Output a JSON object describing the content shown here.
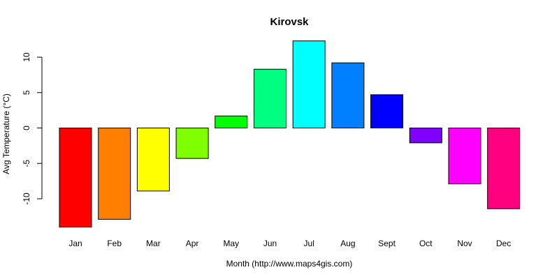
{
  "chart_data": {
    "type": "bar",
    "title": "Kirovsk",
    "xlabel": "Month (http://www.maps4gis.com)",
    "ylabel": "Avg Temperature (°C)",
    "categories": [
      "Jan",
      "Feb",
      "Mar",
      "Apr",
      "May",
      "Jun",
      "Jul",
      "Aug",
      "Sept",
      "Oct",
      "Nov",
      "Dec"
    ],
    "values": [
      -14.0,
      -12.9,
      -8.9,
      -4.3,
      1.7,
      8.3,
      12.3,
      9.2,
      4.7,
      -2.1,
      -7.9,
      -11.4
    ],
    "colors": [
      "#FF0000",
      "#FF8000",
      "#FFFF00",
      "#80FF00",
      "#00FF00",
      "#00FF80",
      "#00FFFF",
      "#0080FF",
      "#0000FF",
      "#8000FF",
      "#FF00FF",
      "#FF0080"
    ],
    "yticks": [
      -10,
      -5,
      0,
      5,
      10
    ],
    "ylim": [
      -14,
      12.3
    ],
    "grid": false,
    "legend": "none"
  }
}
